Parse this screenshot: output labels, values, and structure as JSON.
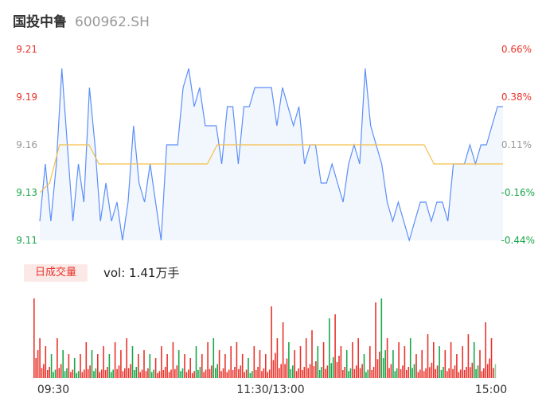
{
  "header": {
    "name": "国投中鲁",
    "code": "600962.SH"
  },
  "volume_panel": {
    "badge": "日成交量",
    "label": "vol: 1.41万手"
  },
  "colors": {
    "price": "#5b8ff9",
    "avg": "#f5c04a",
    "up": "#e8332b",
    "down": "#1aa64a",
    "neutral": "#999999",
    "area": "#f2f6fd"
  },
  "chart_data": [
    {
      "type": "line",
      "series": [],
      "y_ticks": [
        "9.21",
        "9.19",
        "9.16",
        "9.13",
        "9.11"
      ],
      "pct_ticks": [
        "0.66%",
        "0.38%",
        "0.11%",
        "-0.16%",
        "-0.44%"
      ],
      "ylim": [
        9.11,
        9.21
      ],
      "x_ticks": [
        "09:30",
        "11:30/13:00",
        "15:00"
      ],
      "price": [
        9.12,
        9.15,
        9.12,
        9.15,
        9.2,
        9.16,
        9.12,
        9.15,
        9.13,
        9.19,
        9.16,
        9.12,
        9.14,
        9.12,
        9.13,
        9.11,
        9.13,
        9.17,
        9.14,
        9.13,
        9.15,
        9.13,
        9.11,
        9.16,
        9.16,
        9.16,
        9.19,
        9.2,
        9.18,
        9.19,
        9.17,
        9.17,
        9.17,
        9.15,
        9.18,
        9.18,
        9.15,
        9.18,
        9.18,
        9.19,
        9.19,
        9.19,
        9.19,
        9.17,
        9.19,
        9.18,
        9.17,
        9.18,
        9.15,
        9.16,
        9.16,
        9.14,
        9.14,
        9.15,
        9.14,
        9.13,
        9.15,
        9.16,
        9.15,
        9.2,
        9.17,
        9.16,
        9.15,
        9.13,
        9.12,
        9.13,
        9.12,
        9.11,
        9.12,
        9.13,
        9.13,
        9.12,
        9.13,
        9.13,
        9.12,
        9.15,
        9.15,
        9.15,
        9.16,
        9.15,
        9.16,
        9.16,
        9.17,
        9.18,
        9.18
      ],
      "avg": [
        9.135,
        9.14,
        9.16,
        9.16,
        9.16,
        9.16,
        9.15,
        9.15,
        9.15,
        9.15,
        9.15,
        9.15,
        9.15,
        9.15,
        9.15,
        9.15,
        9.15,
        9.15,
        9.16,
        9.16,
        9.16,
        9.16,
        9.16,
        9.16,
        9.16,
        9.16,
        9.16,
        9.16,
        9.16,
        9.16,
        9.16,
        9.16,
        9.16,
        9.16,
        9.16,
        9.16,
        9.16,
        9.16,
        9.16,
        9.16,
        9.15,
        9.15,
        9.15,
        9.15,
        9.15,
        9.15,
        9.15,
        9.15
      ],
      "volume": [
        [
          1,
          5,
          "up"
        ],
        [
          0.5,
          3,
          "up"
        ],
        [
          0.4,
          2,
          "up"
        ],
        [
          0.3,
          2,
          "down"
        ],
        [
          0.5,
          3,
          "up"
        ],
        [
          0.35,
          4,
          "down"
        ],
        [
          0.3,
          2,
          "up"
        ],
        [
          0.25,
          2,
          "down"
        ],
        [
          0.3,
          2,
          "up"
        ],
        [
          0.45,
          3,
          "up"
        ],
        [
          0.35,
          2,
          "down"
        ],
        [
          0.3,
          2,
          "up"
        ],
        [
          0.4,
          2,
          "up"
        ],
        [
          0.3,
          2,
          "down"
        ],
        [
          0.45,
          3,
          "up"
        ],
        [
          0.35,
          2,
          "up"
        ],
        [
          0.5,
          3,
          "up"
        ],
        [
          0.4,
          2,
          "down"
        ],
        [
          0.3,
          2,
          "up"
        ],
        [
          0.35,
          2,
          "up"
        ],
        [
          0.3,
          2,
          "down"
        ],
        [
          0.25,
          2,
          "up"
        ],
        [
          0.4,
          2,
          "up"
        ],
        [
          0.3,
          2,
          "up"
        ],
        [
          0.45,
          3,
          "up"
        ],
        [
          0.35,
          2,
          "down"
        ],
        [
          0.3,
          2,
          "up"
        ],
        [
          0.25,
          2,
          "up"
        ],
        [
          0.4,
          2,
          "down"
        ],
        [
          0.3,
          2,
          "up"
        ],
        [
          0.45,
          3,
          "up"
        ],
        [
          0.5,
          3,
          "down"
        ],
        [
          0.35,
          2,
          "up"
        ],
        [
          0.3,
          2,
          "up"
        ],
        [
          0.4,
          3,
          "up"
        ],
        [
          0.45,
          3,
          "up"
        ],
        [
          0.3,
          2,
          "up"
        ],
        [
          0.25,
          2,
          "down"
        ],
        [
          0.4,
          2,
          "up"
        ],
        [
          0.35,
          2,
          "up"
        ],
        [
          0.3,
          2,
          "up"
        ],
        [
          0.9,
          5,
          "up"
        ],
        [
          0.5,
          3,
          "up"
        ],
        [
          0.7,
          4,
          "up"
        ],
        [
          0.45,
          3,
          "down"
        ],
        [
          0.35,
          2,
          "up"
        ],
        [
          0.4,
          2,
          "up"
        ],
        [
          0.5,
          3,
          "up"
        ],
        [
          0.6,
          3,
          "up"
        ],
        [
          0.4,
          2,
          "down"
        ],
        [
          0.45,
          3,
          "up"
        ],
        [
          0.75,
          5,
          "down"
        ],
        [
          0.8,
          5,
          "up"
        ],
        [
          0.4,
          3,
          "up"
        ],
        [
          0.35,
          2,
          "down"
        ],
        [
          0.45,
          3,
          "up"
        ],
        [
          0.5,
          3,
          "up"
        ],
        [
          0.3,
          2,
          "down"
        ],
        [
          0.4,
          2,
          "up"
        ],
        [
          0.95,
          5,
          "up"
        ],
        [
          1,
          5,
          "down"
        ],
        [
          0.5,
          3,
          "up"
        ],
        [
          0.35,
          2,
          "down"
        ],
        [
          0.45,
          3,
          "up"
        ],
        [
          0.4,
          2,
          "up"
        ],
        [
          0.5,
          3,
          "down"
        ],
        [
          0.3,
          2,
          "up"
        ],
        [
          0.35,
          2,
          "up"
        ],
        [
          0.55,
          3,
          "up"
        ],
        [
          0.45,
          3,
          "up"
        ],
        [
          0.4,
          2,
          "down"
        ],
        [
          0.35,
          2,
          "up"
        ],
        [
          0.45,
          3,
          "up"
        ],
        [
          0.3,
          2,
          "up"
        ],
        [
          0.4,
          2,
          "up"
        ],
        [
          0.55,
          3,
          "up"
        ],
        [
          0.45,
          3,
          "down"
        ],
        [
          0.35,
          2,
          "up"
        ],
        [
          0.7,
          4,
          "up"
        ],
        [
          0.5,
          3,
          "green_tail"
        ]
      ]
    }
  ]
}
